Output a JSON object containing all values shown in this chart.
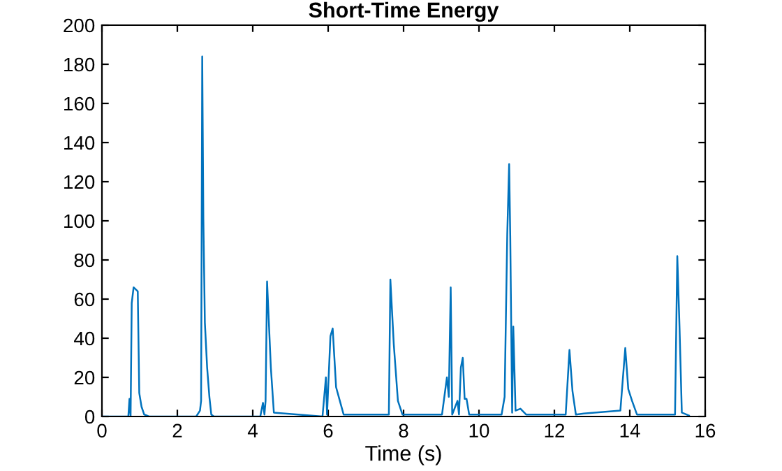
{
  "chart_data": {
    "type": "line",
    "title": "Short-Time Energy",
    "xlabel": "Time (s)",
    "x": [
      0,
      0.5,
      0.7,
      0.73,
      0.76,
      0.79,
      0.84,
      0.95,
      0.99,
      1.05,
      1.12,
      1.25,
      2.5,
      2.6,
      2.63,
      2.66,
      2.69,
      2.73,
      2.79,
      2.85,
      2.9,
      2.97,
      4.2,
      4.27,
      4.31,
      4.34,
      4.38,
      4.48,
      4.56,
      5.85,
      5.94,
      5.97,
      6.06,
      6.12,
      6.21,
      6.31,
      6.41,
      7.61,
      7.65,
      7.74,
      7.85,
      7.97,
      9.02,
      9.15,
      9.2,
      9.25,
      9.29,
      9.43,
      9.47,
      9.52,
      9.57,
      9.62,
      9.67,
      9.74,
      10.6,
      10.68,
      10.75,
      10.8,
      10.83,
      10.88,
      10.91,
      10.97,
      11.1,
      11.25,
      12.3,
      12.4,
      12.48,
      12.57,
      12.78,
      13.75,
      13.88,
      13.96,
      14.06,
      14.19,
      15.2,
      15.26,
      15.32,
      15.38,
      15.57
    ],
    "series": [
      {
        "color": "#0072bd",
        "values": [
          0,
          0,
          0,
          9,
          0,
          58,
          66,
          64,
          12,
          5,
          1,
          0,
          0,
          3,
          8,
          184,
          101,
          48,
          25,
          10,
          1,
          0,
          0,
          7,
          1,
          8,
          69,
          25,
          2,
          0,
          20,
          1,
          41,
          45,
          15,
          8,
          1,
          1,
          70,
          37,
          8,
          1,
          1,
          20,
          10,
          66,
          1,
          8,
          1,
          25,
          30,
          9,
          9,
          1,
          1,
          10,
          93,
          129,
          92,
          2,
          46,
          3,
          4,
          1,
          1,
          34,
          13,
          1,
          1.5,
          3,
          35,
          14,
          8,
          1,
          1,
          82,
          45,
          2,
          0.5
        ]
      }
    ],
    "xlim": [
      0,
      16
    ],
    "xticks": [
      0,
      2,
      4,
      6,
      8,
      10,
      12,
      14,
      16
    ],
    "ylim": [
      0,
      200
    ],
    "yticks": [
      0,
      20,
      40,
      60,
      80,
      100,
      120,
      140,
      160,
      180,
      200
    ],
    "grid": false,
    "legend": false
  }
}
